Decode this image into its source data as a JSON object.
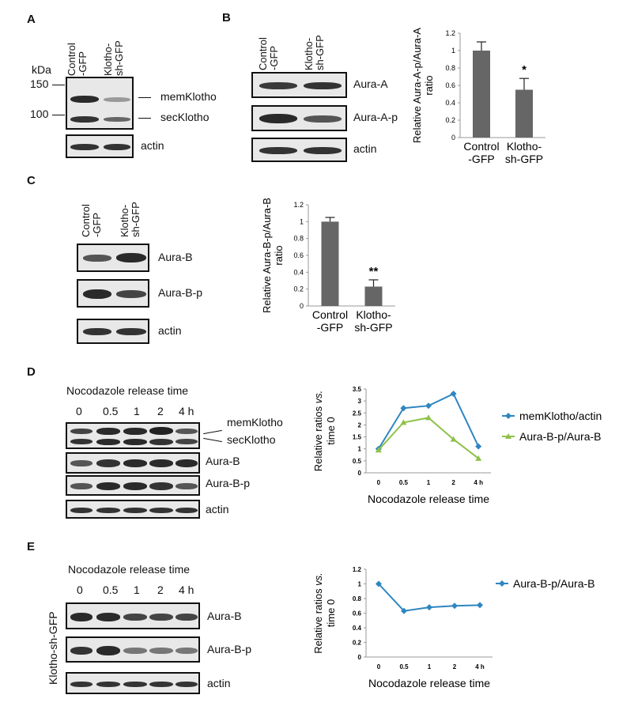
{
  "panel_letters": {
    "a": "A",
    "b": "B",
    "c": "C",
    "d": "D",
    "e": "E"
  },
  "panel_a": {
    "lane1_line1": "Control",
    "lane1_line2": "-GFP",
    "lane2_line1": "Klotho-",
    "lane2_line2": "sh-GFP",
    "kda": "kDa",
    "marker_150": "150",
    "marker_100": "100",
    "mem_label": "memKlotho",
    "sec_label": "secKlotho",
    "actin": "actin"
  },
  "panel_b": {
    "lane1_line1": "Control",
    "lane1_line2": "-GFP",
    "lane2_line1": "Klotho-",
    "lane2_line2": "sh-GFP",
    "row1": "Aura-A",
    "row2": "Aura-A-p",
    "row3": "actin"
  },
  "panel_c": {
    "lane1_line1": "Control",
    "lane1_line2": "-GFP",
    "lane2_line1": "Klotho-",
    "lane2_line2": "sh-GFP",
    "row1": "Aura-B",
    "row2": "Aura-B-p",
    "row3": "actin"
  },
  "panel_d": {
    "title": "Nocodazole release time",
    "lanes": [
      "0",
      "0.5",
      "1",
      "2",
      "4 h"
    ],
    "mem_label": "memKlotho",
    "sec_label": "secKlotho",
    "row2": "Aura-B",
    "row3": "Aura-B-p",
    "row4": "actin"
  },
  "panel_e": {
    "title": "Nocodazole release time",
    "lanes": [
      "0",
      "0.5",
      "1",
      "2",
      "4 h"
    ],
    "side_label": "Klotho-sh-GFP",
    "row1": "Aura-B",
    "row2": "Aura-B-p",
    "row3": "actin"
  },
  "chart_data": [
    {
      "type": "bar",
      "categories": [
        "Control\n-GFP",
        "Klotho-\nsh-GFP"
      ],
      "values": [
        1.0,
        0.55
      ],
      "errors": [
        0.1,
        0.13
      ],
      "significance": [
        "",
        "*"
      ],
      "ylabel": "Relative Aura-A-p/Aura-A ratio",
      "ylim": [
        0,
        1.2
      ],
      "yticks": [
        "0",
        "0.2",
        "0.4",
        "0.6",
        "0.8",
        "1",
        "1.2"
      ],
      "bar_color": "#666666"
    },
    {
      "type": "bar",
      "categories": [
        "Control\n-GFP",
        "Klotho-\nsh-GFP"
      ],
      "values": [
        1.0,
        0.23
      ],
      "errors": [
        0.05,
        0.08
      ],
      "significance": [
        "",
        "**"
      ],
      "ylabel": "Relative Aura-B-p/Aura-B ratio",
      "ylim": [
        0,
        1.2
      ],
      "yticks": [
        "0",
        "0.2",
        "0.4",
        "0.6",
        "0.8",
        "1",
        "1.2"
      ],
      "bar_color": "#666666"
    },
    {
      "type": "line",
      "categories": [
        "0",
        "0.5",
        "1",
        "2",
        "4 h"
      ],
      "series": [
        {
          "name": "memKlotho/actin",
          "values": [
            1.0,
            2.7,
            2.8,
            3.3,
            1.1
          ],
          "color": "#2e86c1",
          "marker": "diamond"
        },
        {
          "name": "Aura-B-p/Aura-B",
          "values": [
            0.95,
            2.1,
            2.3,
            1.4,
            0.6
          ],
          "color": "#8fc14a",
          "marker": "triangle"
        }
      ],
      "xlabel": "Nocodazole release time",
      "ylabel": "Relative ratios vs. time 0",
      "ylim": [
        0,
        3.5
      ],
      "yticks": [
        "0",
        "0.5",
        "1",
        "1.5",
        "2",
        "2.5",
        "3",
        "3.5"
      ],
      "grid": false,
      "legend": "right"
    },
    {
      "type": "line",
      "categories": [
        "0",
        "0.5",
        "1",
        "2",
        "4 h"
      ],
      "series": [
        {
          "name": "Aura-B-p/Aura-B",
          "values": [
            1.0,
            0.63,
            0.68,
            0.7,
            0.71
          ],
          "color": "#2e86c1",
          "marker": "diamond"
        }
      ],
      "xlabel": "Nocodazole release time",
      "ylabel": "Relative ratios vs. time 0",
      "ylim": [
        0,
        1.2
      ],
      "yticks": [
        "0",
        "0.2",
        "0.4",
        "0.6",
        "0.8",
        "1",
        "1.2"
      ],
      "grid": false,
      "legend": "right"
    }
  ]
}
